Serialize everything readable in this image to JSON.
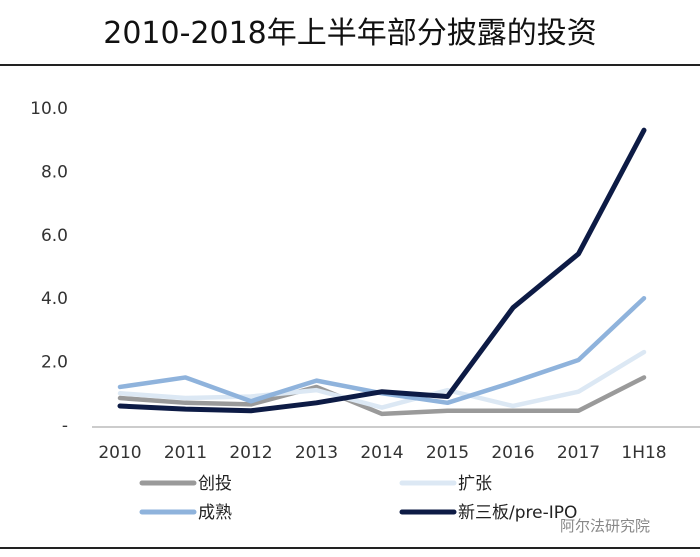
{
  "chart_data": {
    "type": "line",
    "title": "2010-2018年上半年部分披露的投资",
    "categories": [
      "2010",
      "2011",
      "2012",
      "2013",
      "2014",
      "2015",
      "2016",
      "2017",
      "1H18"
    ],
    "ylim": [
      0,
      10
    ],
    "yticks": [
      "-",
      "2.0",
      "4.0",
      "6.0",
      "8.0",
      "10.0"
    ],
    "grid": false,
    "legend_position": "bottom",
    "series": [
      {
        "name": "创投",
        "color": "#9a9a9a",
        "values": [
          0.85,
          0.7,
          0.65,
          1.2,
          0.35,
          0.45,
          0.45,
          0.45,
          1.5
        ]
      },
      {
        "name": "扩张",
        "color": "#dce8f4",
        "values": [
          1.0,
          0.85,
          0.9,
          1.1,
          0.55,
          1.1,
          0.6,
          1.05,
          2.3
        ]
      },
      {
        "name": "成熟",
        "color": "#8fb3dc",
        "values": [
          1.2,
          1.5,
          0.75,
          1.4,
          1.0,
          0.7,
          1.35,
          2.05,
          4.0
        ]
      },
      {
        "name": "新三板/pre-IPO",
        "color": "#0d1b45",
        "values": [
          0.6,
          0.5,
          0.45,
          0.7,
          1.05,
          0.9,
          3.7,
          5.4,
          9.3
        ]
      }
    ]
  },
  "watermark": "阿尔法研究院"
}
